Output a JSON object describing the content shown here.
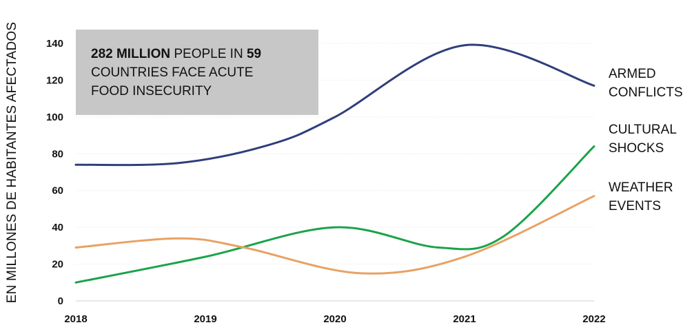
{
  "chart_data": {
    "type": "line",
    "title": "",
    "xlabel": "",
    "ylabel": "EN MILLONES DE HABITANTES AFECTADOS",
    "x": [
      "2018",
      "2019",
      "2020",
      "2021",
      "2022"
    ],
    "ylim": [
      0,
      140
    ],
    "yticks": [
      "0",
      "20",
      "40",
      "60",
      "80",
      "100",
      "120",
      "140"
    ],
    "grid": true,
    "series": [
      {
        "name": "ARMED CONFLICTS",
        "color": "#2e3f7a",
        "points": [
          [
            2018,
            74
          ],
          [
            2018.8,
            75
          ],
          [
            2019.5,
            85
          ],
          [
            2020,
            100
          ],
          [
            2021,
            139
          ],
          [
            2022,
            117
          ]
        ]
      },
      {
        "name": "CULTURAL SHOCKS",
        "color": "#1aa348",
        "points": [
          [
            2018,
            10
          ],
          [
            2019,
            24
          ],
          [
            2020,
            40
          ],
          [
            2020.8,
            29
          ],
          [
            2021.3,
            35
          ],
          [
            2022,
            84
          ]
        ]
      },
      {
        "name": "WEATHER EVENTS",
        "color": "#e8a163",
        "points": [
          [
            2018,
            29
          ],
          [
            2018.8,
            34
          ],
          [
            2019.3,
            29
          ],
          [
            2020.2,
            15
          ],
          [
            2021,
            24
          ],
          [
            2022,
            57
          ]
        ]
      }
    ],
    "annotation": {
      "part1": "282 MILLION",
      "part2": " PEOPLE IN ",
      "part3": "59",
      "part4": "COUNTRIES FACE ACUTE",
      "part5": "FOOD INSECURITY"
    }
  },
  "labels": {
    "armed": "ARMED\nCONFLICTS",
    "cultural": "CULTURAL\nSHOCKS",
    "weather": "WEATHER\nEVENTS"
  }
}
